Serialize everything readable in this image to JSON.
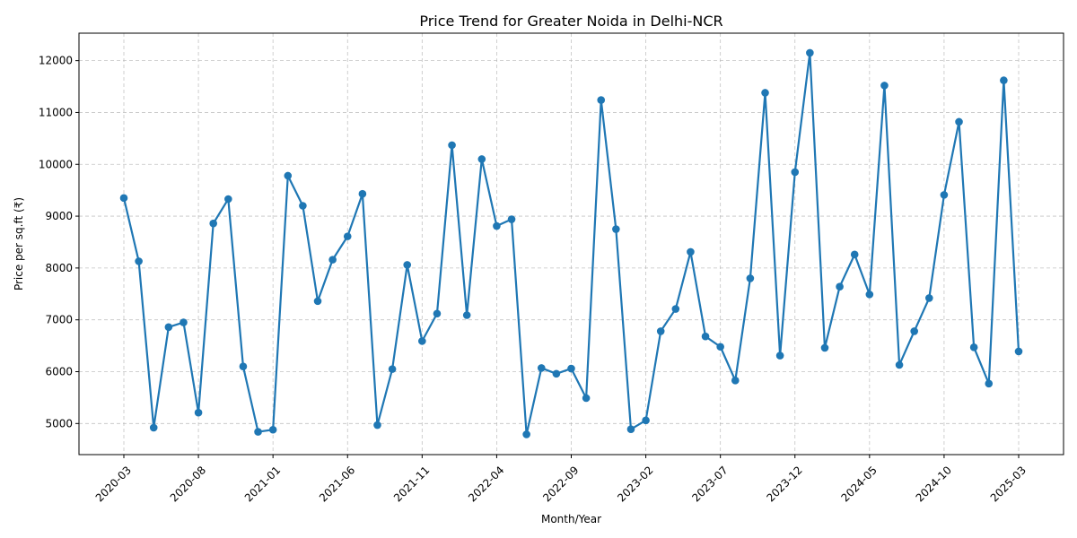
{
  "chart_data": {
    "type": "line",
    "title": "Price Trend for Greater Noida in Delhi-NCR",
    "xlabel": "Month/Year",
    "ylabel": "Price per sq.ft (₹)",
    "x": [
      "2020-03",
      "2020-04",
      "2020-05",
      "2020-06",
      "2020-07",
      "2020-08",
      "2020-09",
      "2020-10",
      "2020-11",
      "2020-12",
      "2021-01",
      "2021-02",
      "2021-03",
      "2021-04",
      "2021-05",
      "2021-06",
      "2021-07",
      "2021-08",
      "2021-09",
      "2021-10",
      "2021-11",
      "2021-12",
      "2022-01",
      "2022-02",
      "2022-03",
      "2022-04",
      "2022-05",
      "2022-06",
      "2022-07",
      "2022-08",
      "2022-09",
      "2022-10",
      "2022-11",
      "2022-12",
      "2023-01",
      "2023-02",
      "2023-03",
      "2023-04",
      "2023-05",
      "2023-06",
      "2023-07",
      "2023-08",
      "2023-09",
      "2023-10",
      "2023-11",
      "2023-12",
      "2024-01",
      "2024-02",
      "2024-03",
      "2024-04",
      "2024-05",
      "2024-06",
      "2024-07",
      "2024-08",
      "2024-09",
      "2024-10",
      "2024-11",
      "2024-12",
      "2025-01",
      "2025-02",
      "2025-03"
    ],
    "x_ticks": [
      "2020-03",
      "2020-08",
      "2021-01",
      "2021-06",
      "2021-11",
      "2022-04",
      "2022-09",
      "2023-02",
      "2023-07",
      "2023-12",
      "2024-05",
      "2024-10",
      "2025-03"
    ],
    "series": [
      {
        "color": "#1f77b4",
        "values": [
          9350,
          8130,
          4920,
          6860,
          6950,
          5210,
          8860,
          9330,
          6100,
          4840,
          4880,
          9780,
          9200,
          7360,
          8160,
          8610,
          9430,
          4970,
          6050,
          8060,
          6590,
          7120,
          10370,
          7090,
          10100,
          8810,
          8940,
          4790,
          6070,
          5960,
          6060,
          5490,
          11240,
          8750,
          4890,
          5060,
          6780,
          7210,
          8310,
          6680,
          6480,
          5830,
          7800,
          11380,
          6310,
          9850,
          12150,
          6460,
          7640,
          8260,
          7490,
          11520,
          6130,
          6780,
          7420,
          9410,
          10820,
          6470,
          5770,
          11620,
          6390
        ]
      }
    ],
    "ylim": [
      4400,
      12530
    ],
    "y_ticks": [
      5000,
      6000,
      7000,
      8000,
      9000,
      10000,
      11000,
      12000
    ],
    "grid": true
  }
}
